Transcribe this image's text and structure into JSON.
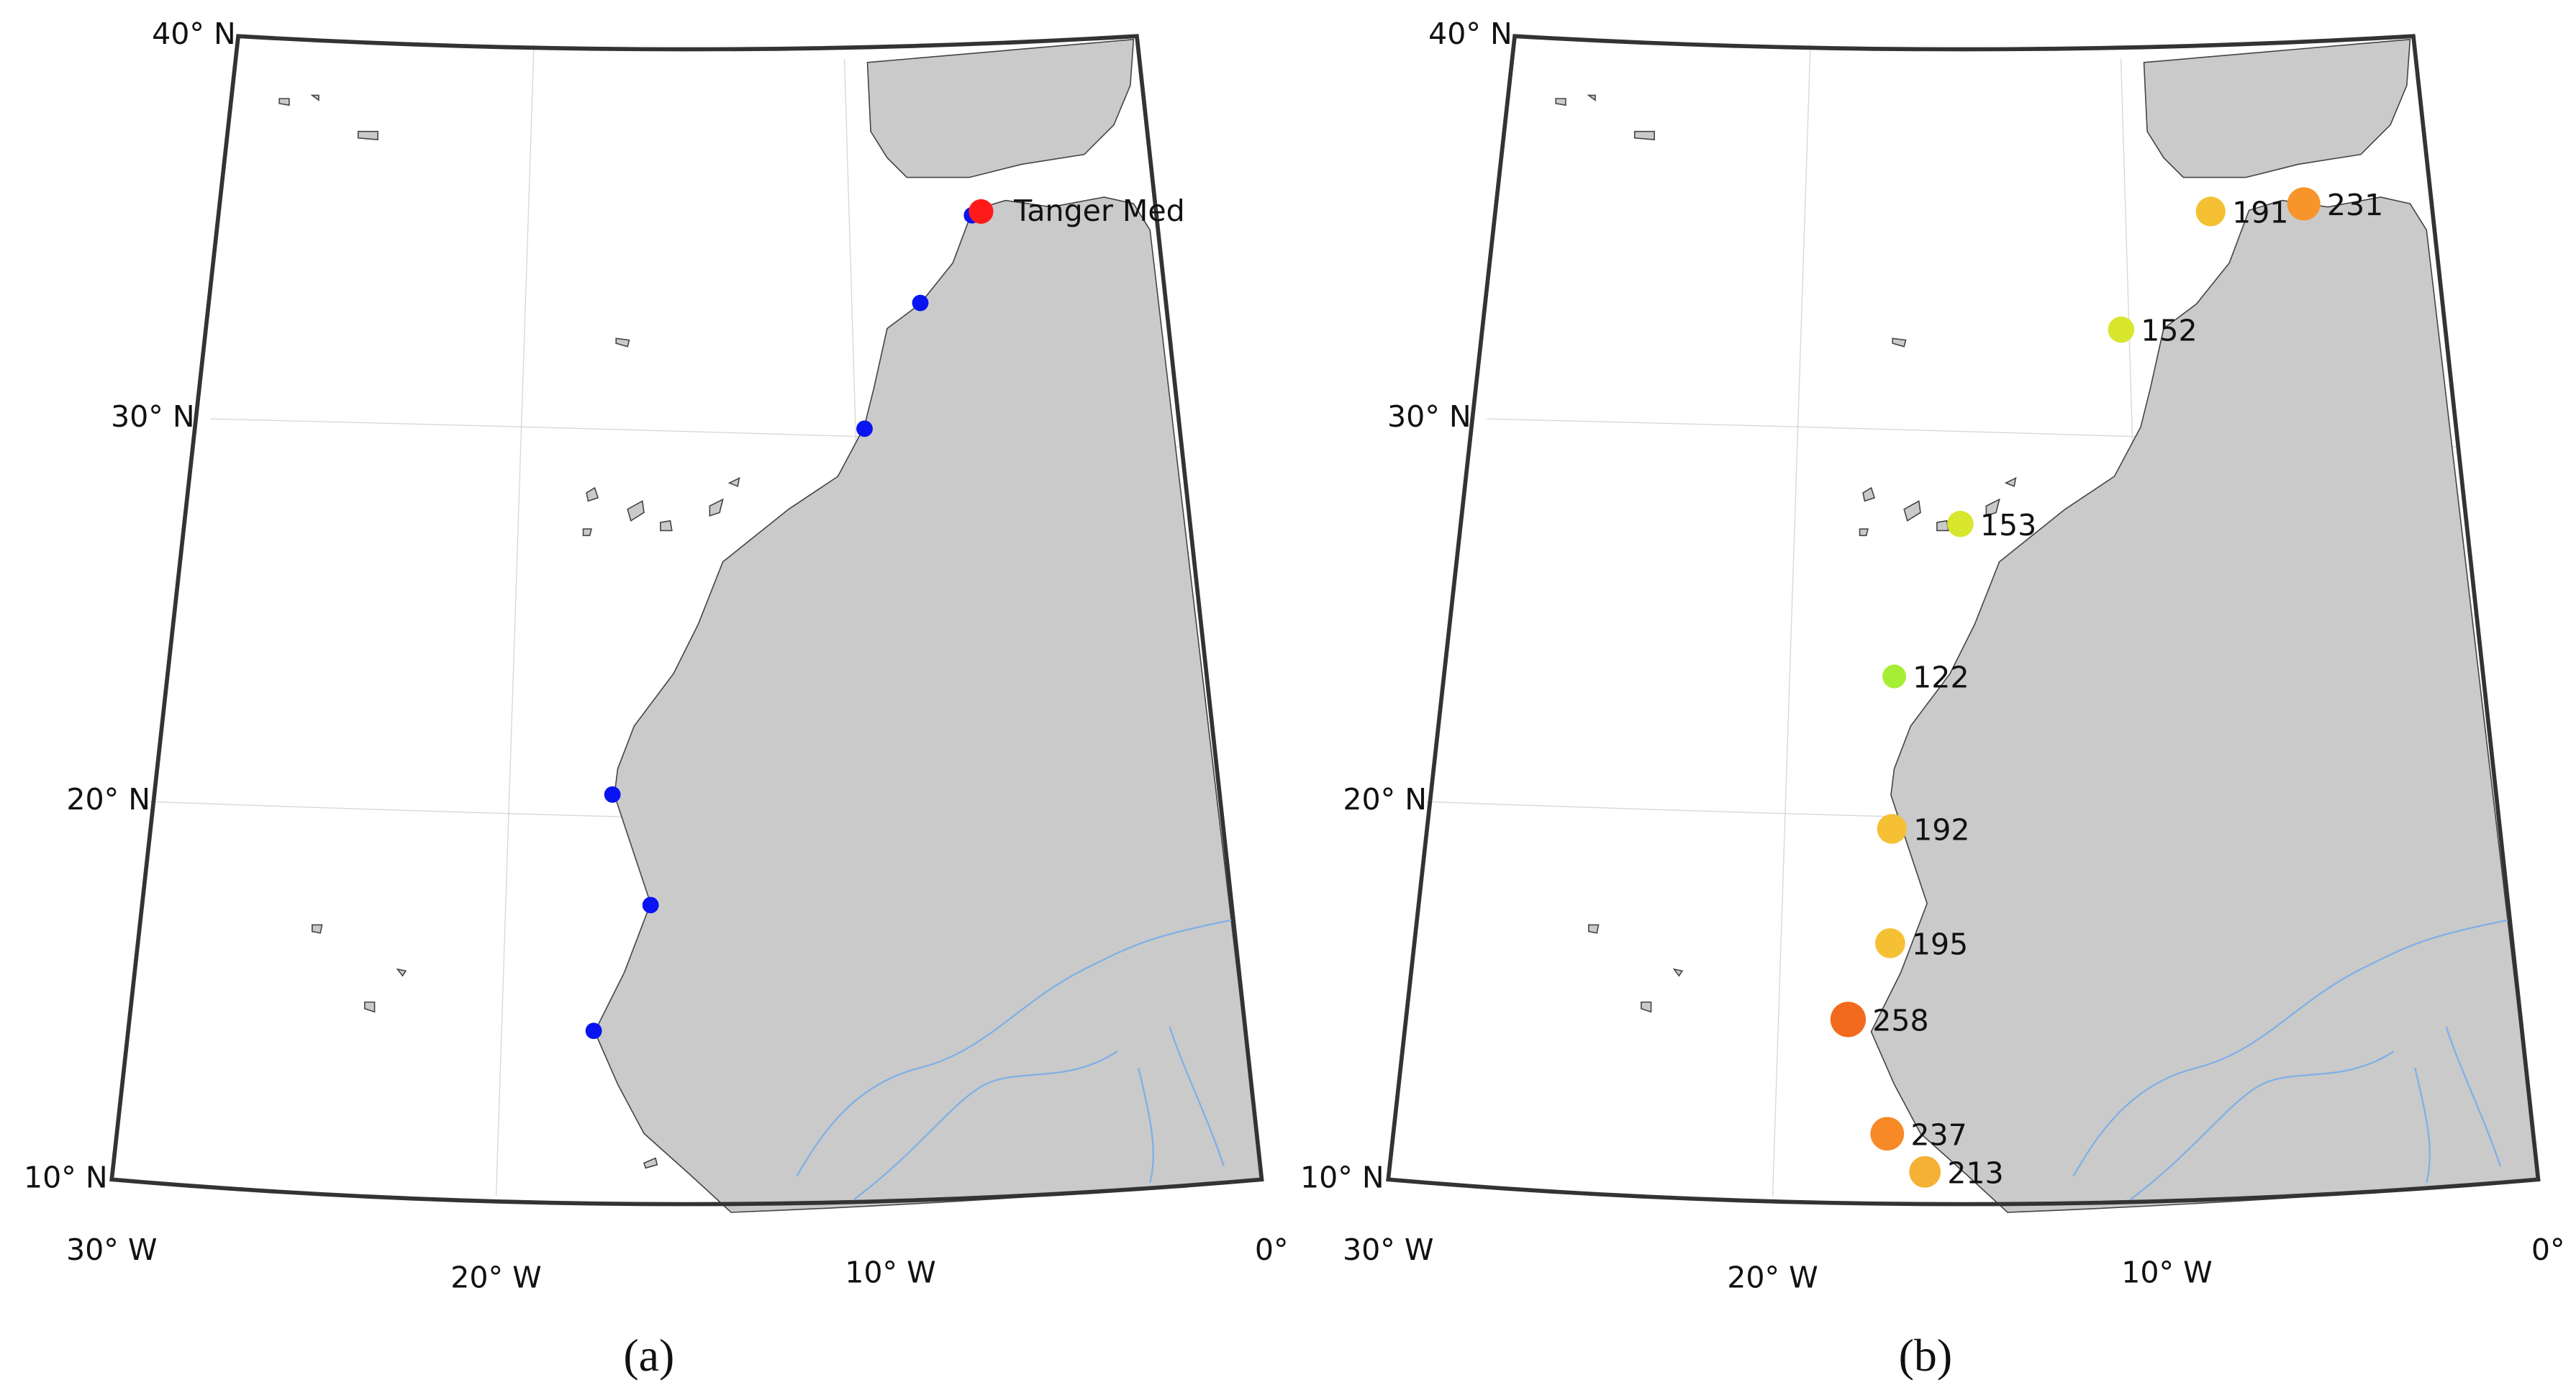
{
  "panels": [
    {
      "caption": "(a)",
      "lat_labels": [
        "40° N",
        "30° N",
        "20° N",
        "10° N"
      ],
      "lon_labels": [
        "30° W",
        "20° W",
        "10° W",
        "0°"
      ],
      "highlight": {
        "label": "Tanger Med",
        "lon": -5.6,
        "lat": 35.4,
        "color": "#ff1a1a"
      },
      "point_color": "#0a14f0",
      "points": [
        {
          "lon": -5.9,
          "lat": 35.3
        },
        {
          "lon": -7.7,
          "lat": 33.0
        },
        {
          "lon": -9.6,
          "lat": 29.7
        },
        {
          "lon": -17.1,
          "lat": 20.1
        },
        {
          "lon": -16.0,
          "lat": 17.2
        },
        {
          "lon": -17.5,
          "lat": 13.9
        }
      ]
    },
    {
      "caption": "(b)",
      "lat_labels": [
        "40° N",
        "30° N",
        "20° N",
        "10° N"
      ],
      "lon_labels": [
        "30° W",
        "20° W",
        "10° W",
        "0°"
      ],
      "points": [
        {
          "lon": -7.1,
          "lat": 35.4,
          "value": 191,
          "color": "#f5c034"
        },
        {
          "lon": -4.1,
          "lat": 35.6,
          "value": 231,
          "color": "#f7952a"
        },
        {
          "lon": -10.1,
          "lat": 32.3,
          "value": 152,
          "color": "#d8e62e"
        },
        {
          "lon": -15.1,
          "lat": 27.2,
          "value": 153,
          "color": "#d8e62e"
        },
        {
          "lon": -17.0,
          "lat": 23.2,
          "value": 122,
          "color": "#a6ee34"
        },
        {
          "lon": -17.0,
          "lat": 19.2,
          "value": 192,
          "color": "#f5c034"
        },
        {
          "lon": -17.0,
          "lat": 16.2,
          "value": 195,
          "color": "#f5c034"
        },
        {
          "lon": -18.1,
          "lat": 14.2,
          "value": 258,
          "color": "#f26a1e"
        },
        {
          "lon": -17.0,
          "lat": 11.2,
          "value": 237,
          "color": "#f78a26"
        },
        {
          "lon": -16.0,
          "lat": 10.2,
          "value": 213,
          "color": "#f5b136"
        }
      ]
    }
  ]
}
